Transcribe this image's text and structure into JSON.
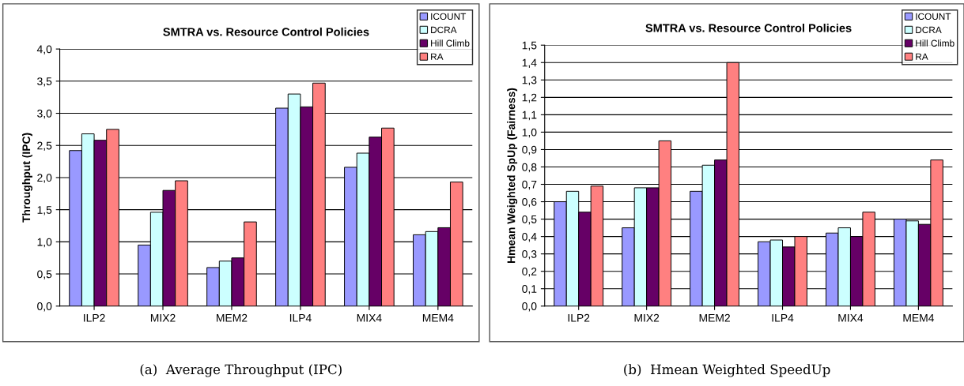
{
  "chart_data": [
    {
      "type": "bar",
      "title": "SMTRA vs. Resource Control Policies",
      "ylabel": "Throughput (IPC)",
      "categories": [
        "ILP2",
        "MIX2",
        "MEM2",
        "ILP4",
        "MIX4",
        "MEM4"
      ],
      "series": [
        {
          "name": "ICOUNT",
          "color": "#9999ff",
          "values": [
            2.42,
            0.95,
            0.6,
            3.08,
            2.16,
            1.11
          ]
        },
        {
          "name": "DCRA",
          "color": "#ccffff",
          "values": [
            2.68,
            1.46,
            0.7,
            3.3,
            2.38,
            1.16
          ]
        },
        {
          "name": "Hill Climb",
          "color": "#660066",
          "values": [
            2.58,
            1.8,
            0.75,
            3.1,
            2.63,
            1.22
          ]
        },
        {
          "name": "RA",
          "color": "#ff8080",
          "values": [
            2.75,
            1.95,
            1.31,
            3.47,
            2.77,
            1.93
          ]
        }
      ],
      "ylim": [
        0,
        4
      ],
      "yticks": [
        {
          "value": 0,
          "label": "0,0"
        },
        {
          "value": 0.5,
          "label": "0,5"
        },
        {
          "value": 1,
          "label": "1,0"
        },
        {
          "value": 1.5,
          "label": "1,5"
        },
        {
          "value": 2,
          "label": "2,0"
        },
        {
          "value": 2.5,
          "label": "2,5"
        },
        {
          "value": 3,
          "label": "3,0"
        },
        {
          "value": 3.5,
          "label": "3,5"
        },
        {
          "value": 4,
          "label": "4,0"
        }
      ],
      "grid": "y",
      "legend": "top right",
      "annotations": [
        "(a)  Average Throughput (IPC)"
      ]
    },
    {
      "type": "bar",
      "title": "SMTRA vs. Resource Control Policies",
      "ylabel": "Hmean Weighted SpUp (Fairness)",
      "categories": [
        "ILP2",
        "MIX2",
        "MEM2",
        "ILP4",
        "MIX4",
        "MEM4"
      ],
      "series": [
        {
          "name": "ICOUNT",
          "color": "#9999ff",
          "values": [
            0.6,
            0.45,
            0.66,
            0.37,
            0.42,
            0.5
          ]
        },
        {
          "name": "DCRA",
          "color": "#ccffff",
          "values": [
            0.66,
            0.68,
            0.81,
            0.38,
            0.45,
            0.49
          ]
        },
        {
          "name": "Hill Climb",
          "color": "#660066",
          "values": [
            0.54,
            0.68,
            0.84,
            0.34,
            0.4,
            0.47
          ]
        },
        {
          "name": "RA",
          "color": "#ff8080",
          "values": [
            0.69,
            0.95,
            1.4,
            0.4,
            0.54,
            0.84
          ]
        }
      ],
      "ylim": [
        0,
        1.5
      ],
      "yticks": [
        {
          "value": 0,
          "label": "0,0"
        },
        {
          "value": 0.1,
          "label": "0,1"
        },
        {
          "value": 0.2,
          "label": "0,2"
        },
        {
          "value": 0.3,
          "label": "0,3"
        },
        {
          "value": 0.4,
          "label": "0,4"
        },
        {
          "value": 0.5,
          "label": "0,5"
        },
        {
          "value": 0.6,
          "label": "0,6"
        },
        {
          "value": 0.7,
          "label": "0,7"
        },
        {
          "value": 0.8,
          "label": "0,8"
        },
        {
          "value": 0.9,
          "label": "0,9"
        },
        {
          "value": 1.0,
          "label": "1,0"
        },
        {
          "value": 1.1,
          "label": "1,1"
        },
        {
          "value": 1.2,
          "label": "1,2"
        },
        {
          "value": 1.3,
          "label": "1,3"
        },
        {
          "value": 1.4,
          "label": "1,4"
        },
        {
          "value": 1.5,
          "label": "1,5"
        }
      ],
      "grid": "y",
      "legend": "top right",
      "annotations": [
        "(b)  Hmean Weighted SpeedUp"
      ]
    }
  ]
}
